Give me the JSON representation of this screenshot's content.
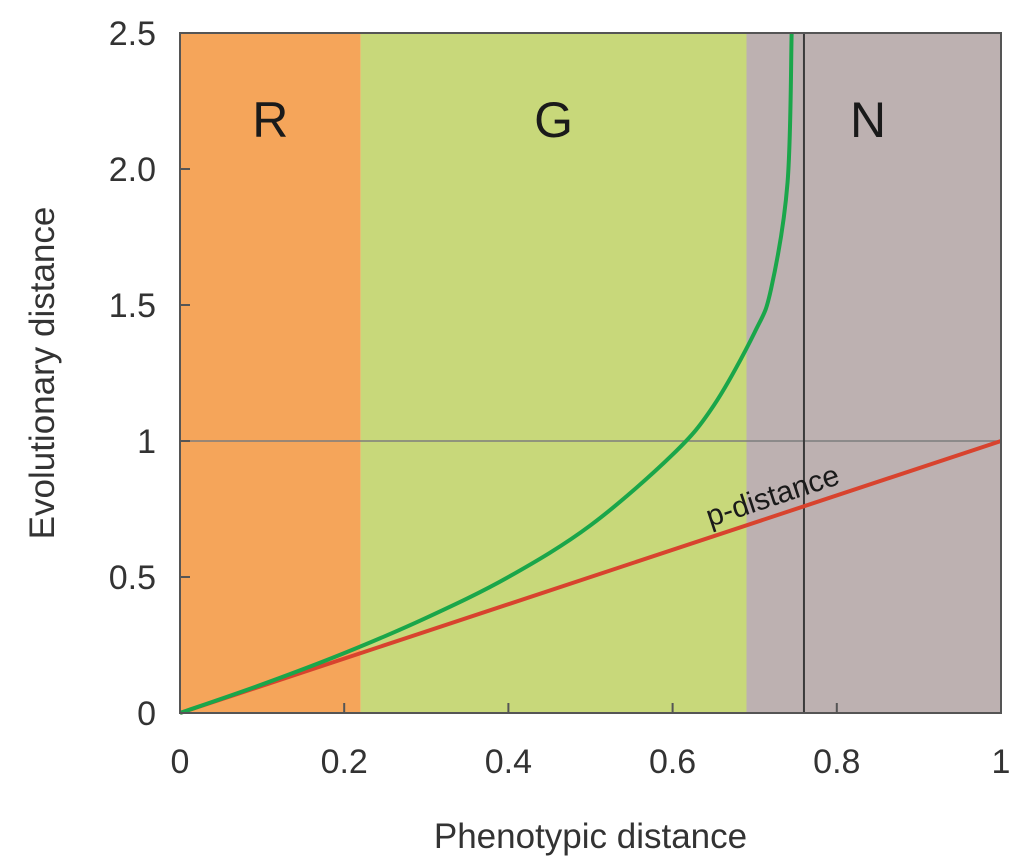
{
  "chart_data": {
    "type": "line",
    "xlabel": "Phenotypic distance",
    "ylabel": "Evolutionary distance",
    "xlim": [
      0,
      1
    ],
    "ylim": [
      0,
      2.5
    ],
    "x_ticks": [
      0,
      0.2,
      0.4,
      0.6,
      0.8,
      1
    ],
    "x_tick_labels": [
      "0",
      "0.2",
      "0.4",
      "0.6",
      "0.8",
      "1"
    ],
    "y_ticks": [
      0,
      0.5,
      1,
      1.5,
      2.0,
      2.5
    ],
    "y_tick_labels": [
      "0",
      "0.5",
      "1",
      "1.5",
      "2.0",
      "2.5"
    ],
    "regions": [
      {
        "label": "R",
        "x_start": 0,
        "x_end": 0.22,
        "color": "#f5a55a"
      },
      {
        "label": "G",
        "x_start": 0.22,
        "x_end": 0.69,
        "color": "#c8d87a"
      },
      {
        "label": "N",
        "x_start": 0.69,
        "x_end": 1.0,
        "color": "#bdb1b1"
      }
    ],
    "reference_lines": [
      {
        "orientation": "horizontal",
        "y": 1
      },
      {
        "orientation": "vertical",
        "x": 0.76
      }
    ],
    "series": [
      {
        "label": "p-distance",
        "color": "#d8432e",
        "x": [
          0,
          1
        ],
        "y": [
          0,
          1
        ]
      },
      {
        "color": "#1aa64a",
        "x": [
          0,
          0.1,
          0.2,
          0.3,
          0.4,
          0.5,
          0.6,
          0.65,
          0.7,
          0.72,
          0.74,
          0.745
        ],
        "y": [
          0,
          0.105,
          0.22,
          0.35,
          0.5,
          0.69,
          0.95,
          1.13,
          1.4,
          1.56,
          1.95,
          2.5
        ]
      }
    ]
  }
}
